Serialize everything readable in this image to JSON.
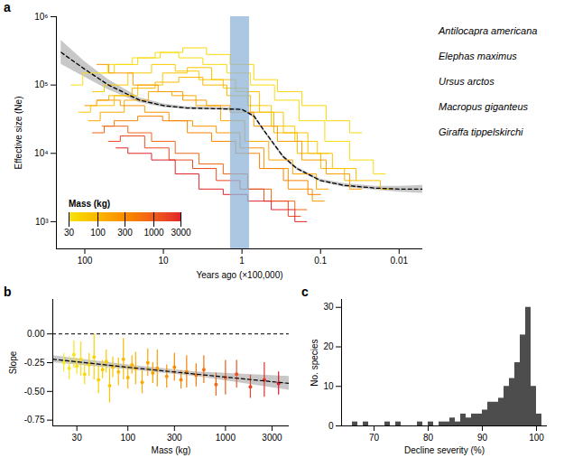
{
  "chart_data": [
    {
      "panel": "a",
      "type": "line",
      "log": true,
      "x_label": "Years ago (×100,000)",
      "y_label": "Effective size (Ne)",
      "xlim": [
        230,
        0.005
      ],
      "xticks": [
        100,
        10,
        1,
        0.1,
        0.01
      ],
      "ylim": [
        400,
        1000000
      ],
      "yticks": [
        {
          "value": 1000,
          "label": "10³"
        },
        {
          "value": 10000,
          "label": "10⁴"
        },
        {
          "value": 100000,
          "label": "10⁵"
        },
        {
          "value": 1000000,
          "label": "10⁶"
        }
      ],
      "line_style": "step",
      "series": [
        {
          "mass": 40,
          "x": [
            60,
            30,
            15,
            8,
            4,
            2,
            1,
            0.5,
            0.25,
            0.12,
            0.06,
            0.03
          ],
          "values": [
            150000,
            200000,
            250000,
            300000,
            350000,
            280000,
            200000,
            120000,
            80000,
            50000,
            30000,
            20000
          ]
        },
        {
          "mass": 60,
          "x": [
            80,
            40,
            20,
            10,
            5,
            2.5,
            1.2,
            0.6,
            0.3,
            0.15,
            0.08
          ],
          "values": [
            80000,
            100000,
            150000,
            200000,
            160000,
            120000,
            90000,
            50000,
            25000,
            15000,
            10000
          ]
        },
        {
          "mass": 100,
          "x": [
            70,
            35,
            18,
            9,
            4.5,
            2.2,
            1.1,
            0.55,
            0.28,
            0.14,
            0.07,
            0.035
          ],
          "values": [
            60000,
            70000,
            90000,
            110000,
            130000,
            100000,
            70000,
            40000,
            20000,
            10000,
            6000,
            4000
          ]
        },
        {
          "mass": 150,
          "x": [
            90,
            45,
            22,
            11,
            5.5,
            2.7,
            1.3,
            0.65,
            0.32,
            0.16,
            0.08
          ],
          "values": [
            30000,
            40000,
            60000,
            80000,
            70000,
            50000,
            30000,
            15000,
            8000,
            5000,
            3000
          ]
        },
        {
          "mass": 250,
          "x": [
            100,
            50,
            25,
            12,
            6,
            3,
            1.5,
            0.75,
            0.37,
            0.18,
            0.09
          ],
          "values": [
            50000,
            60000,
            50000,
            40000,
            30000,
            25000,
            20000,
            12000,
            6000,
            3000,
            2000
          ]
        },
        {
          "mass": 400,
          "x": [
            60,
            30,
            15,
            7,
            3.5,
            1.7,
            0.85,
            0.42,
            0.21,
            0.1
          ],
          "values": [
            25000,
            30000,
            35000,
            30000,
            20000,
            15000,
            10000,
            6000,
            4000,
            2500
          ]
        },
        {
          "mass": 800,
          "x": [
            80,
            40,
            20,
            10,
            5,
            2.5,
            1.2,
            0.6,
            0.3,
            0.15
          ],
          "values": [
            20000,
            25000,
            20000,
            15000,
            10000,
            7000,
            5000,
            3000,
            2000,
            1500
          ]
        },
        {
          "mass": 1500,
          "x": [
            50,
            25,
            12,
            6,
            3,
            1.5,
            0.75,
            0.37,
            0.18
          ],
          "values": [
            15000,
            18000,
            12000,
            8000,
            6000,
            4000,
            3000,
            2000,
            1200
          ]
        },
        {
          "mass": 3000,
          "x": [
            40,
            20,
            10,
            5,
            2.5,
            1.2,
            0.6,
            0.3,
            0.15
          ],
          "values": [
            12000,
            10000,
            8000,
            5000,
            3000,
            2500,
            2000,
            1500,
            1000
          ]
        },
        {
          "mass": 35,
          "x": [
            150,
            75,
            35,
            18,
            9,
            4.5,
            2.2,
            1.1,
            0.55,
            0.27,
            0.13,
            0.06,
            0.03,
            0.015
          ],
          "values": [
            100000,
            150000,
            200000,
            250000,
            300000,
            250000,
            200000,
            150000,
            100000,
            60000,
            30000,
            15000,
            8000,
            5000
          ]
        },
        {
          "mass": 70,
          "x": [
            120,
            60,
            30,
            15,
            7,
            3.5,
            1.7,
            0.85,
            0.42,
            0.21,
            0.1,
            0.05,
            0.025,
            0.012
          ],
          "values": [
            40000,
            50000,
            70000,
            100000,
            150000,
            180000,
            120000,
            80000,
            40000,
            20000,
            10000,
            6000,
            4000,
            3000
          ]
        },
        {
          "mass": 200,
          "x": [
            70,
            35,
            17,
            8,
            4,
            2,
            1,
            0.5,
            0.25,
            0.12,
            0.06,
            0.03
          ],
          "values": [
            200000,
            150000,
            100000,
            80000,
            60000,
            50000,
            40000,
            25000,
            15000,
            8000,
            5000,
            3000
          ]
        }
      ],
      "fit": {
        "line_style": "dashed",
        "color": "#000000",
        "band_color": "#9a9a9a",
        "x": [
          200,
          100,
          50,
          20,
          10,
          5,
          2,
          1,
          0.7,
          0.5,
          0.3,
          0.2,
          0.1,
          0.05,
          0.02,
          0.01,
          0.005
        ],
        "values": [
          300000,
          170000,
          100000,
          60000,
          50000,
          46000,
          45000,
          44000,
          35000,
          20000,
          9000,
          6000,
          4000,
          3400,
          3100,
          3000,
          3000
        ],
        "lower": [
          200000,
          130000,
          85000,
          55000,
          47000,
          44000,
          43000,
          42000,
          33000,
          19000,
          8500,
          5700,
          3800,
          3200,
          2900,
          2700,
          2600
        ],
        "upper": [
          450000,
          220000,
          120000,
          65000,
          53000,
          48000,
          47000,
          46000,
          37000,
          21000,
          9500,
          6300,
          4200,
          3600,
          3300,
          3300,
          3400
        ]
      },
      "shaded_interval": {
        "x": [
          1.4,
          0.8
        ],
        "color": "#8fb4d8"
      },
      "colorbar": {
        "label": "Mass (kg)",
        "range": [
          30,
          3000
        ],
        "ticks": [
          3000,
          1000,
          300,
          100,
          30
        ],
        "colors": [
          "#f7e21a",
          "#e0242a"
        ]
      },
      "legend": "bottom-left",
      "annotations": [
        "Antilocapra americana",
        "Elephas maximus",
        "Ursus arctos",
        "Macropus giganteus",
        "Giraffa tippelskirchi"
      ]
    },
    {
      "panel": "b",
      "type": "scatter",
      "log": "x",
      "marker": "circle",
      "x_label": "Mass (kg)",
      "y_label": "Slope",
      "xlim": [
        17,
        4500
      ],
      "xticks": [
        30,
        100,
        300,
        1000,
        3000
      ],
      "ylim": [
        -0.8,
        0.3
      ],
      "yticks": [
        {
          "value": 0,
          "label": "0.00"
        },
        {
          "value": -0.25,
          "label": "-0.25"
        },
        {
          "value": -0.5,
          "label": "-0.50"
        },
        {
          "value": -0.75,
          "label": "-0.75"
        }
      ],
      "x": [
        22,
        25,
        28,
        30,
        33,
        36,
        40,
        45,
        50,
        55,
        60,
        65,
        70,
        80,
        90,
        100,
        110,
        120,
        140,
        160,
        180,
        200,
        250,
        300,
        350,
        400,
        500,
        600,
        800,
        1000,
        1300,
        1800,
        2500,
        3500
      ],
      "values": [
        -0.25,
        -0.3,
        -0.18,
        -0.28,
        -0.22,
        -0.35,
        -0.27,
        -0.2,
        -0.4,
        -0.31,
        -0.24,
        -0.45,
        -0.29,
        -0.33,
        -0.22,
        -0.38,
        -0.27,
        -0.3,
        -0.42,
        -0.25,
        -0.34,
        -0.3,
        -0.37,
        -0.29,
        -0.4,
        -0.33,
        -0.36,
        -0.31,
        -0.44,
        -0.38,
        -0.35,
        -0.46,
        -0.4,
        -0.43
      ],
      "lower": [
        -0.33,
        -0.4,
        -0.3,
        -0.35,
        -0.37,
        -0.44,
        -0.37,
        -0.4,
        -0.52,
        -0.39,
        -0.34,
        -0.6,
        -0.38,
        -0.45,
        -0.4,
        -0.48,
        -0.35,
        -0.44,
        -0.52,
        -0.37,
        -0.43,
        -0.46,
        -0.47,
        -0.41,
        -0.48,
        -0.47,
        -0.46,
        -0.43,
        -0.54,
        -0.53,
        -0.47,
        -0.56,
        -0.55,
        -0.53
      ],
      "upper": [
        -0.17,
        -0.2,
        -0.06,
        -0.21,
        -0.07,
        -0.26,
        -0.17,
        0.0,
        -0.28,
        -0.23,
        -0.14,
        -0.3,
        -0.2,
        -0.21,
        -0.04,
        -0.28,
        -0.19,
        -0.16,
        -0.32,
        -0.13,
        -0.25,
        -0.14,
        -0.27,
        -0.17,
        -0.32,
        -0.19,
        -0.26,
        -0.19,
        -0.34,
        -0.23,
        -0.23,
        -0.36,
        -0.25,
        -0.33
      ],
      "fit": {
        "line_style": "dashed",
        "color": "#000000",
        "band_color": "#9a9a9a",
        "x": [
          17,
          100,
          500,
          4500
        ],
        "values": [
          -0.22,
          -0.29,
          -0.35,
          -0.43
        ],
        "lower": [
          -0.25,
          -0.31,
          -0.37,
          -0.49
        ],
        "upper": [
          -0.19,
          -0.27,
          -0.33,
          -0.37
        ]
      },
      "reference_line": {
        "value": 0,
        "line_style": "dashed",
        "color": "#000000"
      }
    },
    {
      "panel": "c",
      "type": "histogram",
      "x_label": "Decline severity (%)",
      "y_label": "No. species",
      "xlim": [
        64,
        102
      ],
      "xticks": [
        70,
        80,
        90,
        100
      ],
      "ylim": [
        0,
        32
      ],
      "yticks": [
        0,
        10,
        20,
        30
      ],
      "bins": [
        65,
        66,
        67,
        68,
        69,
        70,
        71,
        72,
        73,
        74,
        75,
        76,
        77,
        78,
        79,
        80,
        81,
        82,
        83,
        84,
        85,
        86,
        87,
        88,
        89,
        90,
        91,
        92,
        93,
        94,
        95,
        96,
        97,
        98,
        99,
        100,
        101
      ],
      "counts": [
        0,
        1,
        0,
        1,
        0,
        0,
        0,
        1,
        0,
        1,
        0,
        0,
        0,
        1,
        0,
        1,
        0,
        1,
        1,
        2,
        1,
        3,
        2,
        3,
        3,
        4,
        6,
        6,
        7,
        10,
        12,
        16,
        23,
        30,
        10,
        3
      ],
      "color": "#4d4d4d"
    }
  ]
}
